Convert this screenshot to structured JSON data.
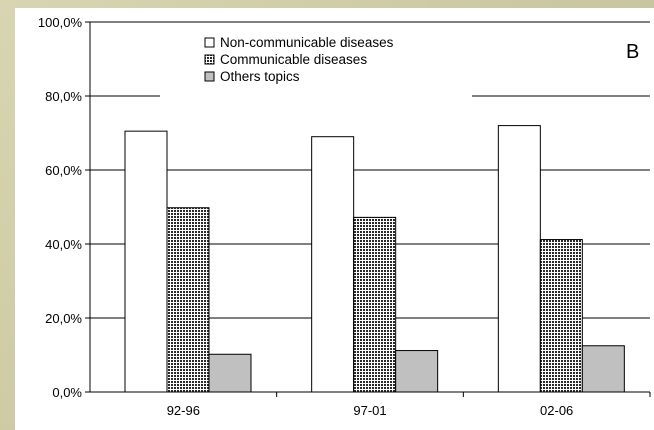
{
  "chart_data": {
    "type": "bar",
    "panel_label": "B",
    "categories": [
      "92-96",
      "97-01",
      "02-06"
    ],
    "series": [
      {
        "name": "Non-communicable diseases",
        "values": [
          70.5,
          69.0,
          72.0
        ],
        "fill": "#ffffff",
        "pattern": "solid"
      },
      {
        "name": "Communicable diseases",
        "values": [
          49.8,
          47.2,
          41.2
        ],
        "fill": "#3a3a3a",
        "pattern": "dots"
      },
      {
        "name": "Others topics",
        "values": [
          10.2,
          11.2,
          12.5
        ],
        "fill": "#c0c0c0",
        "pattern": "solid"
      }
    ],
    "ylim": [
      0,
      100
    ],
    "yticks": [
      0,
      20,
      40,
      60,
      80,
      100
    ],
    "ytick_labels": [
      "0,0%",
      "20,0%",
      "40,0%",
      "60,0%",
      "80,0%",
      "100,0%"
    ],
    "grid": true,
    "legend_position": "top-center",
    "xlabel": "",
    "ylabel": ""
  }
}
